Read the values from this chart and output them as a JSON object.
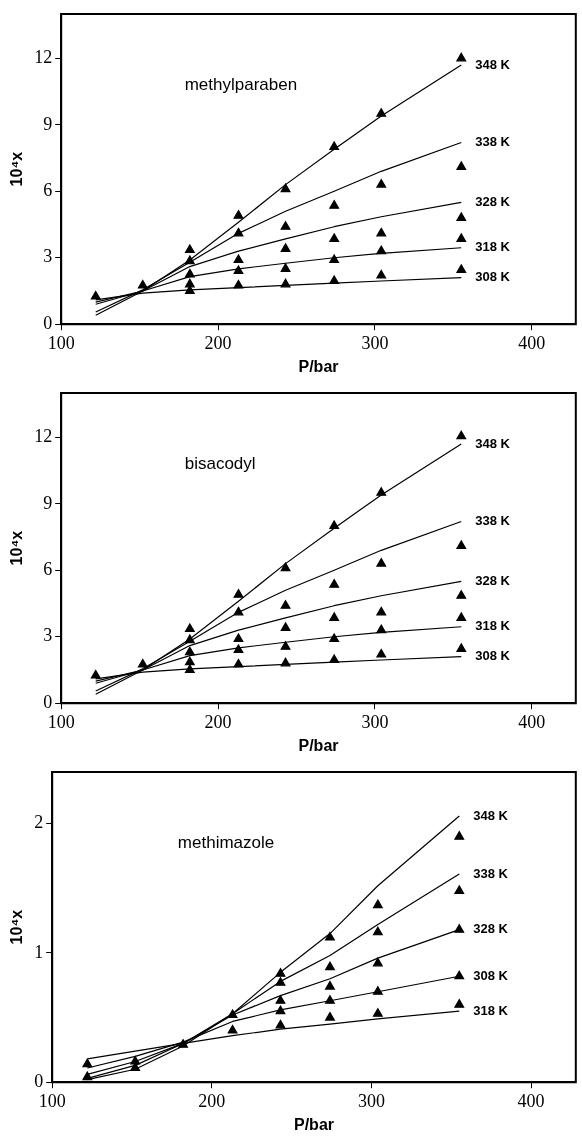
{
  "chart_data": [
    {
      "type": "scatter",
      "title": "methylparaben",
      "xlabel": "P/bar",
      "ylabel": "10⁴x",
      "x": [
        122,
        152,
        182,
        213,
        243,
        274,
        304,
        355
      ],
      "xlim": [
        100,
        428
      ],
      "xticks": [
        100,
        200,
        300,
        400
      ],
      "ylim": [
        0,
        14
      ],
      "yticks": [
        0,
        3,
        6,
        9,
        12
      ],
      "grid": false,
      "legend": false,
      "series": [
        {
          "type": "scatter",
          "color": "#000000",
          "marker": "triangle",
          "values": [
            null,
            null,
            3.35,
            4.9,
            6.1,
            8.0,
            9.5,
            12.0
          ]
        },
        {
          "type": "scatter",
          "color": "#000000",
          "marker": "triangle",
          "values": [
            null,
            null,
            2.85,
            4.1,
            4.4,
            5.35,
            6.3,
            7.1
          ]
        },
        {
          "type": "scatter",
          "color": "#000000",
          "marker": "triangle",
          "values": [
            null,
            null,
            2.25,
            2.9,
            3.4,
            3.85,
            4.1,
            4.8
          ]
        },
        {
          "type": "scatter",
          "color": "#000000",
          "marker": "triangle",
          "values": [
            null,
            null,
            1.8,
            2.4,
            2.5,
            2.9,
            3.3,
            3.85
          ]
        },
        {
          "type": "scatter",
          "color": "#000000",
          "marker": "triangle",
          "values": [
            1.25,
            1.75,
            1.5,
            1.75,
            1.8,
            1.95,
            2.2,
            2.45
          ]
        },
        {
          "type": "line",
          "name": "348 K",
          "color": "#000000",
          "marker": "none",
          "values": [
            0.4,
            1.5,
            2.9,
            4.6,
            6.3,
            7.9,
            9.4,
            11.7
          ]
        },
        {
          "type": "line",
          "name": "338 K",
          "color": "#000000",
          "marker": "none",
          "values": [
            0.55,
            1.55,
            2.8,
            4.1,
            5.1,
            6.0,
            6.9,
            8.2
          ]
        },
        {
          "type": "line",
          "name": "328 K",
          "color": "#000000",
          "marker": "none",
          "values": [
            0.9,
            1.5,
            2.6,
            3.3,
            3.85,
            4.4,
            4.85,
            5.5
          ]
        },
        {
          "type": "line",
          "name": "318 K",
          "color": "#000000",
          "marker": "none",
          "values": [
            1.0,
            1.5,
            2.15,
            2.5,
            2.75,
            3.0,
            3.2,
            3.45
          ]
        },
        {
          "type": "line",
          "name": "308 K",
          "color": "#000000",
          "marker": "none",
          "values": [
            1.1,
            1.4,
            1.55,
            1.65,
            1.75,
            1.85,
            1.95,
            2.1
          ]
        }
      ]
    },
    {
      "type": "scatter",
      "title": "bisacodyl",
      "xlabel": "P/bar",
      "ylabel": "10⁴x",
      "x": [
        122,
        152,
        182,
        213,
        243,
        274,
        304,
        355
      ],
      "xlim": [
        100,
        428
      ],
      "xticks": [
        100,
        200,
        300,
        400
      ],
      "ylim": [
        0,
        14
      ],
      "yticks": [
        0,
        3,
        6,
        9,
        12
      ],
      "grid": false,
      "legend": false,
      "series": [
        {
          "type": "scatter",
          "color": "#000000",
          "marker": "triangle",
          "values": [
            null,
            null,
            3.35,
            4.9,
            6.1,
            8.0,
            9.5,
            12.05
          ]
        },
        {
          "type": "scatter",
          "color": "#000000",
          "marker": "triangle",
          "values": [
            null,
            null,
            2.85,
            4.1,
            4.4,
            5.35,
            6.3,
            7.1
          ]
        },
        {
          "type": "scatter",
          "color": "#000000",
          "marker": "triangle",
          "values": [
            null,
            null,
            2.3,
            2.9,
            3.4,
            3.85,
            4.1,
            4.85
          ]
        },
        {
          "type": "scatter",
          "color": "#000000",
          "marker": "triangle",
          "values": [
            null,
            null,
            1.85,
            2.4,
            2.55,
            2.9,
            3.3,
            3.85
          ]
        },
        {
          "type": "scatter",
          "color": "#000000",
          "marker": "triangle",
          "values": [
            1.25,
            1.75,
            1.5,
            1.75,
            1.8,
            1.95,
            2.2,
            2.45
          ]
        },
        {
          "type": "line",
          "name": "348 K",
          "color": "#000000",
          "marker": "none",
          "values": [
            0.4,
            1.5,
            2.9,
            4.6,
            6.3,
            7.9,
            9.4,
            11.7
          ]
        },
        {
          "type": "line",
          "name": "338 K",
          "color": "#000000",
          "marker": "none",
          "values": [
            0.55,
            1.55,
            2.8,
            4.1,
            5.1,
            6.0,
            6.9,
            8.2
          ]
        },
        {
          "type": "line",
          "name": "328 K",
          "color": "#000000",
          "marker": "none",
          "values": [
            0.9,
            1.5,
            2.6,
            3.3,
            3.85,
            4.4,
            4.85,
            5.5
          ]
        },
        {
          "type": "line",
          "name": "318 K",
          "color": "#000000",
          "marker": "none",
          "values": [
            1.0,
            1.5,
            2.15,
            2.5,
            2.75,
            3.0,
            3.2,
            3.45
          ]
        },
        {
          "type": "line",
          "name": "308 K",
          "color": "#000000",
          "marker": "none",
          "values": [
            1.1,
            1.4,
            1.55,
            1.65,
            1.75,
            1.85,
            1.95,
            2.1
          ]
        }
      ]
    },
    {
      "type": "scatter",
      "title": "methimazole",
      "xlabel": "P/bar",
      "ylabel": "10⁴x",
      "x": [
        122,
        152,
        182,
        213,
        243,
        274,
        304,
        355
      ],
      "xlim": [
        100,
        428
      ],
      "xticks": [
        100,
        200,
        300,
        400
      ],
      "ylim": [
        0,
        2.4
      ],
      "yticks": [
        0,
        1,
        2
      ],
      "grid": false,
      "legend": false,
      "series": [
        {
          "type": "scatter",
          "color": "#000000",
          "marker": "triangle",
          "values": [
            0.04,
            0.11,
            0.29,
            0.52,
            0.84,
            1.12,
            1.37,
            1.9
          ]
        },
        {
          "type": "scatter",
          "color": "#000000",
          "marker": "triangle",
          "values": [
            null,
            null,
            null,
            null,
            0.77,
            0.89,
            1.16,
            1.48
          ]
        },
        {
          "type": "scatter",
          "color": "#000000",
          "marker": "triangle",
          "values": [
            null,
            null,
            null,
            null,
            0.63,
            0.74,
            0.92,
            1.18
          ]
        },
        {
          "type": "scatter",
          "color": "#000000",
          "marker": "triangle",
          "values": [
            null,
            null,
            null,
            null,
            0.55,
            0.63,
            0.7,
            0.82
          ]
        },
        {
          "type": "scatter",
          "color": "#000000",
          "marker": "triangle",
          "values": [
            0.14,
            0.16,
            null,
            0.4,
            0.44,
            0.5,
            0.53,
            0.6
          ]
        },
        {
          "type": "line",
          "name": "348 K",
          "color": "#000000",
          "marker": "none",
          "values": [
            0.02,
            0.1,
            0.28,
            0.53,
            0.85,
            1.15,
            1.52,
            2.06
          ]
        },
        {
          "type": "line",
          "name": "338 K",
          "color": "#000000",
          "marker": "none",
          "values": [
            0.03,
            0.13,
            0.3,
            0.53,
            0.78,
            0.98,
            1.22,
            1.61
          ]
        },
        {
          "type": "line",
          "name": "328 K",
          "color": "#000000",
          "marker": "none",
          "values": [
            0.06,
            0.16,
            0.3,
            0.52,
            0.67,
            0.8,
            0.96,
            1.18
          ]
        },
        {
          "type": "line",
          "name": "308 K",
          "color": "#000000",
          "marker": "none",
          "values": [
            0.11,
            0.2,
            0.31,
            0.47,
            0.56,
            0.63,
            0.7,
            0.82
          ]
        },
        {
          "type": "line",
          "name": "318 K",
          "color": "#000000",
          "marker": "none",
          "values": [
            0.18,
            0.24,
            0.3,
            0.36,
            0.41,
            0.45,
            0.49,
            0.55
          ]
        }
      ]
    }
  ]
}
